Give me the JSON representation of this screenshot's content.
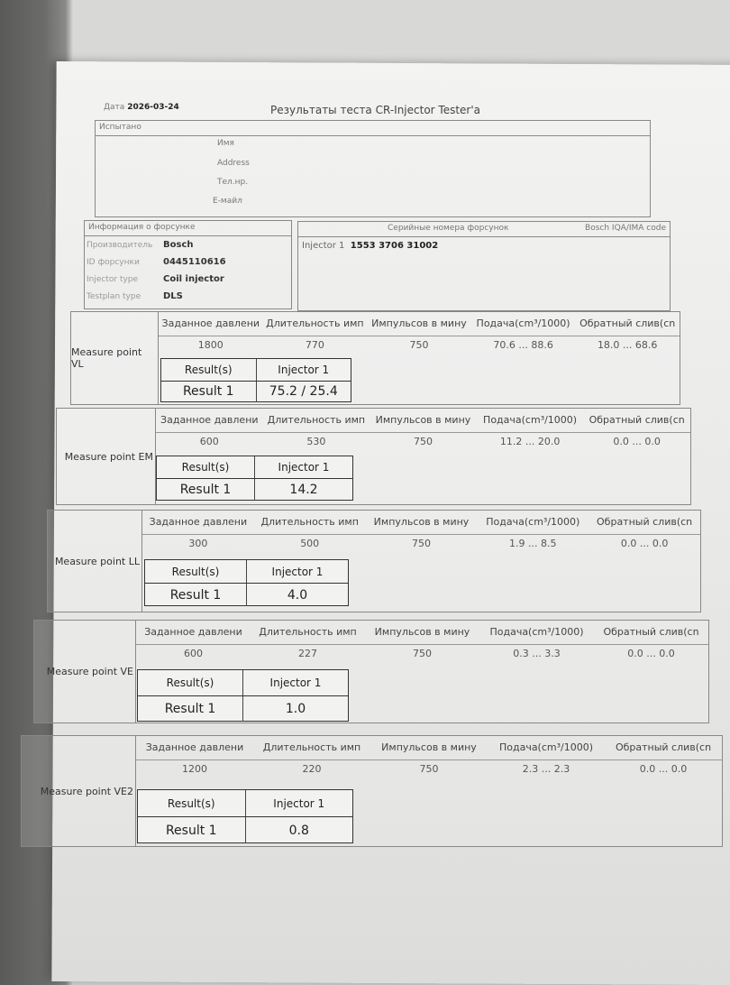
{
  "header": {
    "date_label": "Дата",
    "date": "2026-03-24",
    "title": "Результаты теста CR-Injector Tester'a"
  },
  "tested": {
    "title": "Испытано",
    "fields": [
      "Имя",
      "Address",
      "Тел.нр.",
      "E-майл"
    ]
  },
  "injector_info": {
    "title": "Информация о форсунке",
    "rows": [
      {
        "k": "Производитель",
        "v": "Bosch"
      },
      {
        "k": "ID форсунки",
        "v": "0445110616"
      },
      {
        "k": "Injector type",
        "v": "Coil injector"
      },
      {
        "k": "Testplan type",
        "v": "DLS"
      }
    ]
  },
  "serials": {
    "title": "Серийные номера форсунок",
    "code_label": "Bosch IQA/IMA code",
    "injector": "Injector 1",
    "serial": "1553 3706 31002"
  },
  "columns": [
    "Заданное давлени",
    "Длительность имп",
    "Импульсов в мину",
    "Подача(cm³/1000)",
    "Обратный слив(cn"
  ],
  "result_headers": [
    "Result(s)",
    "Injector 1"
  ],
  "measure_points": [
    {
      "name": "Measure point VL",
      "values": [
        "1800",
        "770",
        "750",
        "70.6 ... 88.6",
        "18.0 ... 68.6"
      ],
      "result_label": "Result 1",
      "result": "75.2 / 25.4"
    },
    {
      "name": "Measure point EM",
      "values": [
        "600",
        "530",
        "750",
        "11.2 ... 20.0",
        "0.0 ... 0.0"
      ],
      "result_label": "Result 1",
      "result": "14.2"
    },
    {
      "name": "Measure point LL",
      "values": [
        "300",
        "500",
        "750",
        "1.9 ... 8.5",
        "0.0 ... 0.0"
      ],
      "result_label": "Result 1",
      "result": "4.0"
    },
    {
      "name": "Measure point VE",
      "values": [
        "600",
        "227",
        "750",
        "0.3 ... 3.3",
        "0.0 ... 0.0"
      ],
      "result_label": "Result 1",
      "result": "1.0"
    },
    {
      "name": "Measure point VE2",
      "values": [
        "1200",
        "220",
        "750",
        "2.3 ... 2.3",
        "0.0 ... 0.0"
      ],
      "result_label": "Result 1",
      "result": "0.8"
    }
  ]
}
